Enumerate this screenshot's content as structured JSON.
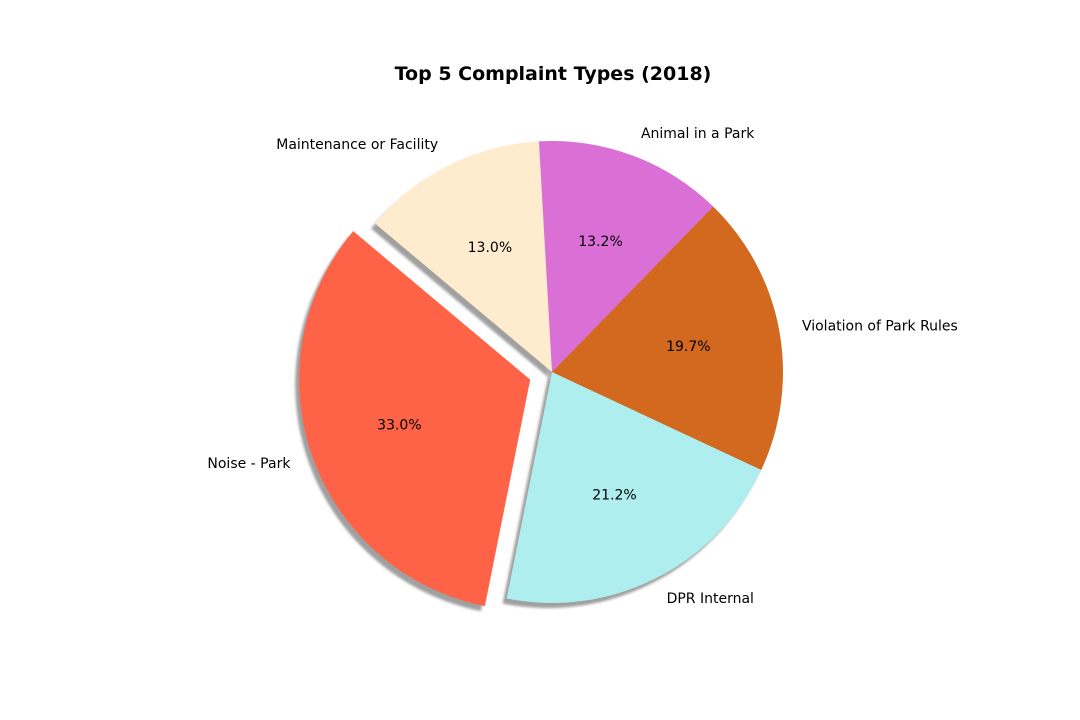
{
  "chart_data": {
    "type": "pie",
    "title": "Top 5 Complaint Types (2018)",
    "shadow": true,
    "legend": false,
    "slices": [
      {
        "label": "Noise - Park",
        "value": 33.0,
        "pct_label": "33.0%",
        "color": "#FF6347",
        "explode": 0.1
      },
      {
        "label": "DPR Internal",
        "value": 21.2,
        "pct_label": "21.2%",
        "color": "#AFEEEE",
        "explode": 0
      },
      {
        "label": "Violation of Park Rules",
        "value": 19.7,
        "pct_label": "19.7%",
        "color": "#D2691E",
        "explode": 0
      },
      {
        "label": "Animal in a Park",
        "value": 13.2,
        "pct_label": "13.2%",
        "color": "#DA70D6",
        "explode": 0
      },
      {
        "label": "Maintenance or Facility",
        "value": 13.0,
        "pct_label": "13.0%",
        "color": "#FFEBCD",
        "explode": 0
      }
    ]
  }
}
